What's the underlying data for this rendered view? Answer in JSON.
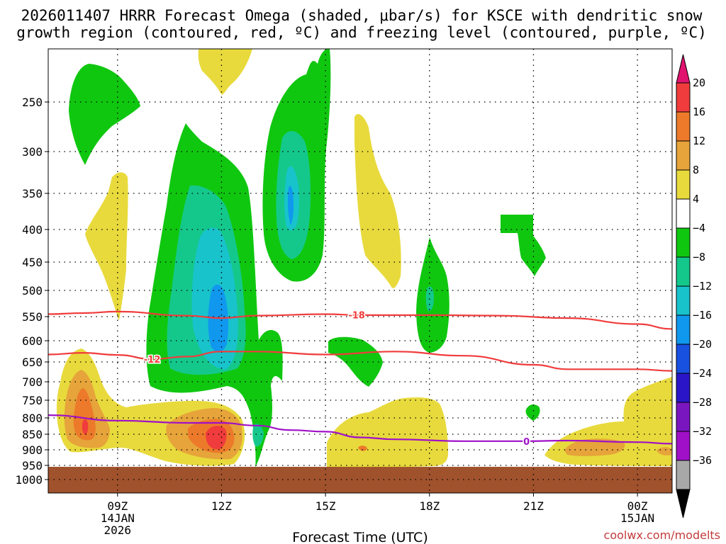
{
  "title": {
    "line1": "2026011407 HRRR Forecast Omega (shaded, μbar/s) for KSCE with dendritic snow",
    "line2": "growth region (contoured, red, ºC) and freezing level (contoured, purple, ºC)"
  },
  "credit": "coolwx.com/modelts",
  "chart_data": {
    "type": "time-height cross-section",
    "title": "2026011407 HRRR Forecast Omega (shaded, μbar/s) for KSCE with dendritic snow growth region (contoured, red, ºC) and freezing level (contoured, purple, ºC)",
    "xlabel": "Forecast Time (UTC)",
    "ylabel": "",
    "xlim": [
      7,
      25
    ],
    "ylim": [
      1050,
      200
    ],
    "x_ticks": [
      {
        "hour": 9,
        "lines": [
          "09Z",
          "14JAN",
          "2026"
        ]
      },
      {
        "hour": 12,
        "lines": [
          "12Z"
        ]
      },
      {
        "hour": 15,
        "lines": [
          "15Z"
        ]
      },
      {
        "hour": 18,
        "lines": [
          "18Z"
        ]
      },
      {
        "hour": 21,
        "lines": [
          "21Z"
        ]
      },
      {
        "hour": 24,
        "lines": [
          "00Z",
          "15JAN"
        ]
      }
    ],
    "y_ticks": [
      250,
      300,
      350,
      400,
      450,
      500,
      550,
      600,
      650,
      700,
      750,
      800,
      850,
      900,
      950,
      1000
    ],
    "grid": true,
    "ground_pressure": 955,
    "colorbar": {
      "labels": [
        "20",
        "16",
        "12",
        "8",
        "4",
        "−4",
        "−8",
        "−12",
        "−16",
        "−20",
        "−24",
        "−28",
        "−32",
        "−36"
      ],
      "colors": [
        "#e0136f",
        "#f03c3c",
        "#ec7a2a",
        "#e6a43a",
        "#e8da3c",
        "#ffffff",
        "#10c710",
        "#14c88c",
        "#18c3cc",
        "#1098ee",
        "#1850e0",
        "#2a16c8",
        "#7a16c0",
        "#a010c8",
        "#a8a8a8",
        "#000000"
      ]
    },
    "series": [
      {
        "name": "-18",
        "type": "contour",
        "color": "#f03c3c",
        "label_hour": 15.9,
        "points": [
          [
            7,
            545
          ],
          [
            8,
            543
          ],
          [
            9,
            540
          ],
          [
            11,
            548
          ],
          [
            12,
            553
          ],
          [
            13,
            548
          ],
          [
            15,
            545
          ],
          [
            16,
            547
          ],
          [
            18,
            547
          ],
          [
            20,
            548
          ],
          [
            22,
            553
          ],
          [
            24,
            565
          ],
          [
            25,
            575
          ]
        ]
      },
      {
        "name": "-12",
        "type": "contour",
        "color": "#f03c3c",
        "label_hour": 10,
        "points": [
          [
            7,
            632
          ],
          [
            8,
            628
          ],
          [
            9,
            633
          ],
          [
            10,
            643
          ],
          [
            11,
            637
          ],
          [
            12,
            625
          ],
          [
            13,
            625
          ],
          [
            15,
            632
          ],
          [
            17,
            625
          ],
          [
            19,
            635
          ],
          [
            21,
            657
          ],
          [
            22,
            668
          ],
          [
            24,
            668
          ],
          [
            25,
            672
          ]
        ]
      },
      {
        "name": "0",
        "type": "contour",
        "color": "#a010c8",
        "label_hour": 20.8,
        "points": [
          [
            7,
            792
          ],
          [
            9,
            808
          ],
          [
            11,
            815
          ],
          [
            12,
            815
          ],
          [
            13,
            823
          ],
          [
            14,
            837
          ],
          [
            15,
            842
          ],
          [
            16,
            860
          ],
          [
            17,
            866
          ],
          [
            19,
            872
          ],
          [
            20.8,
            872
          ],
          [
            22,
            870
          ],
          [
            24,
            875
          ],
          [
            25,
            880
          ]
        ]
      }
    ]
  }
}
